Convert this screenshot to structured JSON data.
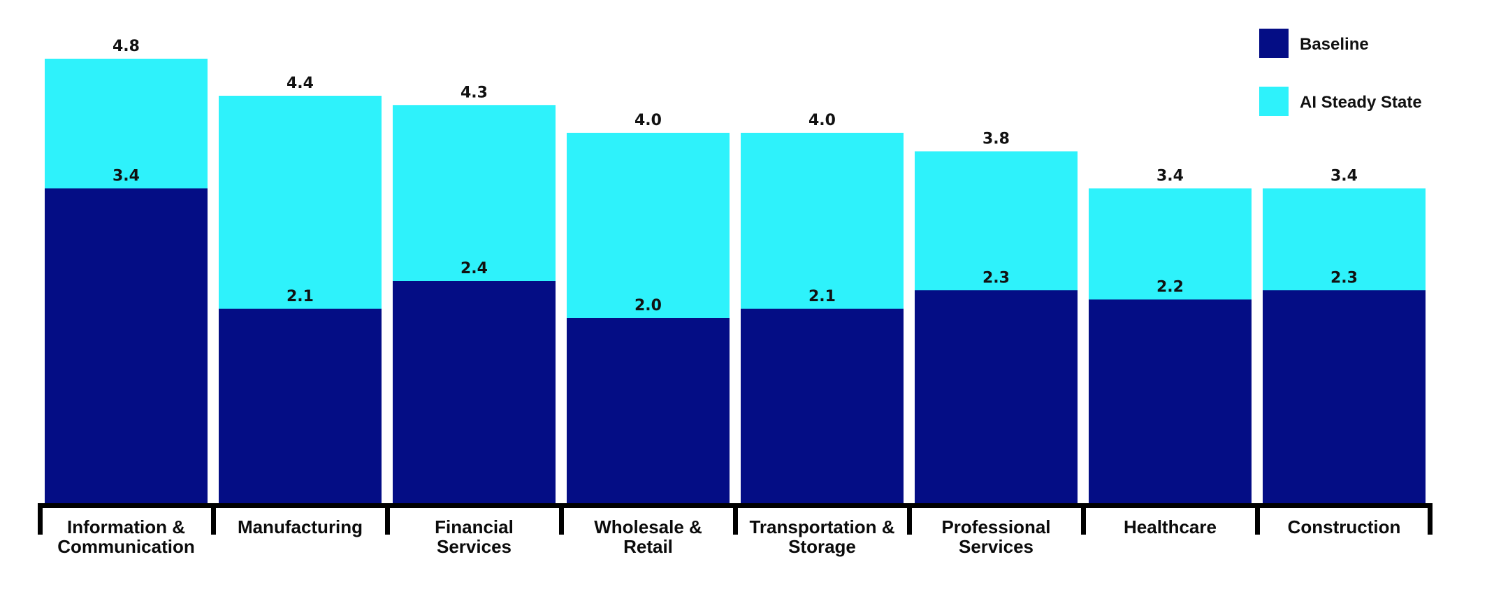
{
  "chart_data": {
    "type": "bar",
    "stacked": false,
    "overlap": true,
    "categories": [
      [
        "Information &",
        "Communication"
      ],
      [
        "Manufacturing"
      ],
      [
        "Financial",
        "Services"
      ],
      [
        "Wholesale &",
        "Retail"
      ],
      [
        "Transportation &",
        "Storage"
      ],
      [
        "Professional",
        "Services"
      ],
      [
        "Healthcare"
      ],
      [
        "Construction"
      ]
    ],
    "series": [
      {
        "name": "Baseline",
        "color": "#040d85",
        "values": [
          3.4,
          2.1,
          2.4,
          2.0,
          2.1,
          2.3,
          2.2,
          2.3
        ],
        "labels": [
          "3.4",
          "2.1",
          "2.4",
          "2.0",
          "2.1",
          "2.3",
          "2.2",
          "2.3"
        ]
      },
      {
        "name": "AI Steady State",
        "color": "#2ef2fb",
        "values": [
          4.8,
          4.4,
          4.3,
          4.0,
          4.0,
          3.8,
          3.4,
          3.4
        ],
        "labels": [
          "4.8",
          "4.4",
          "4.3",
          "4.0",
          "4.0",
          "3.8",
          "3.4",
          "3.4"
        ]
      }
    ],
    "ylim": [
      0,
      4.8
    ],
    "grid": false,
    "legend_position": "top-right",
    "title": "",
    "xlabel": "",
    "ylabel": ""
  }
}
